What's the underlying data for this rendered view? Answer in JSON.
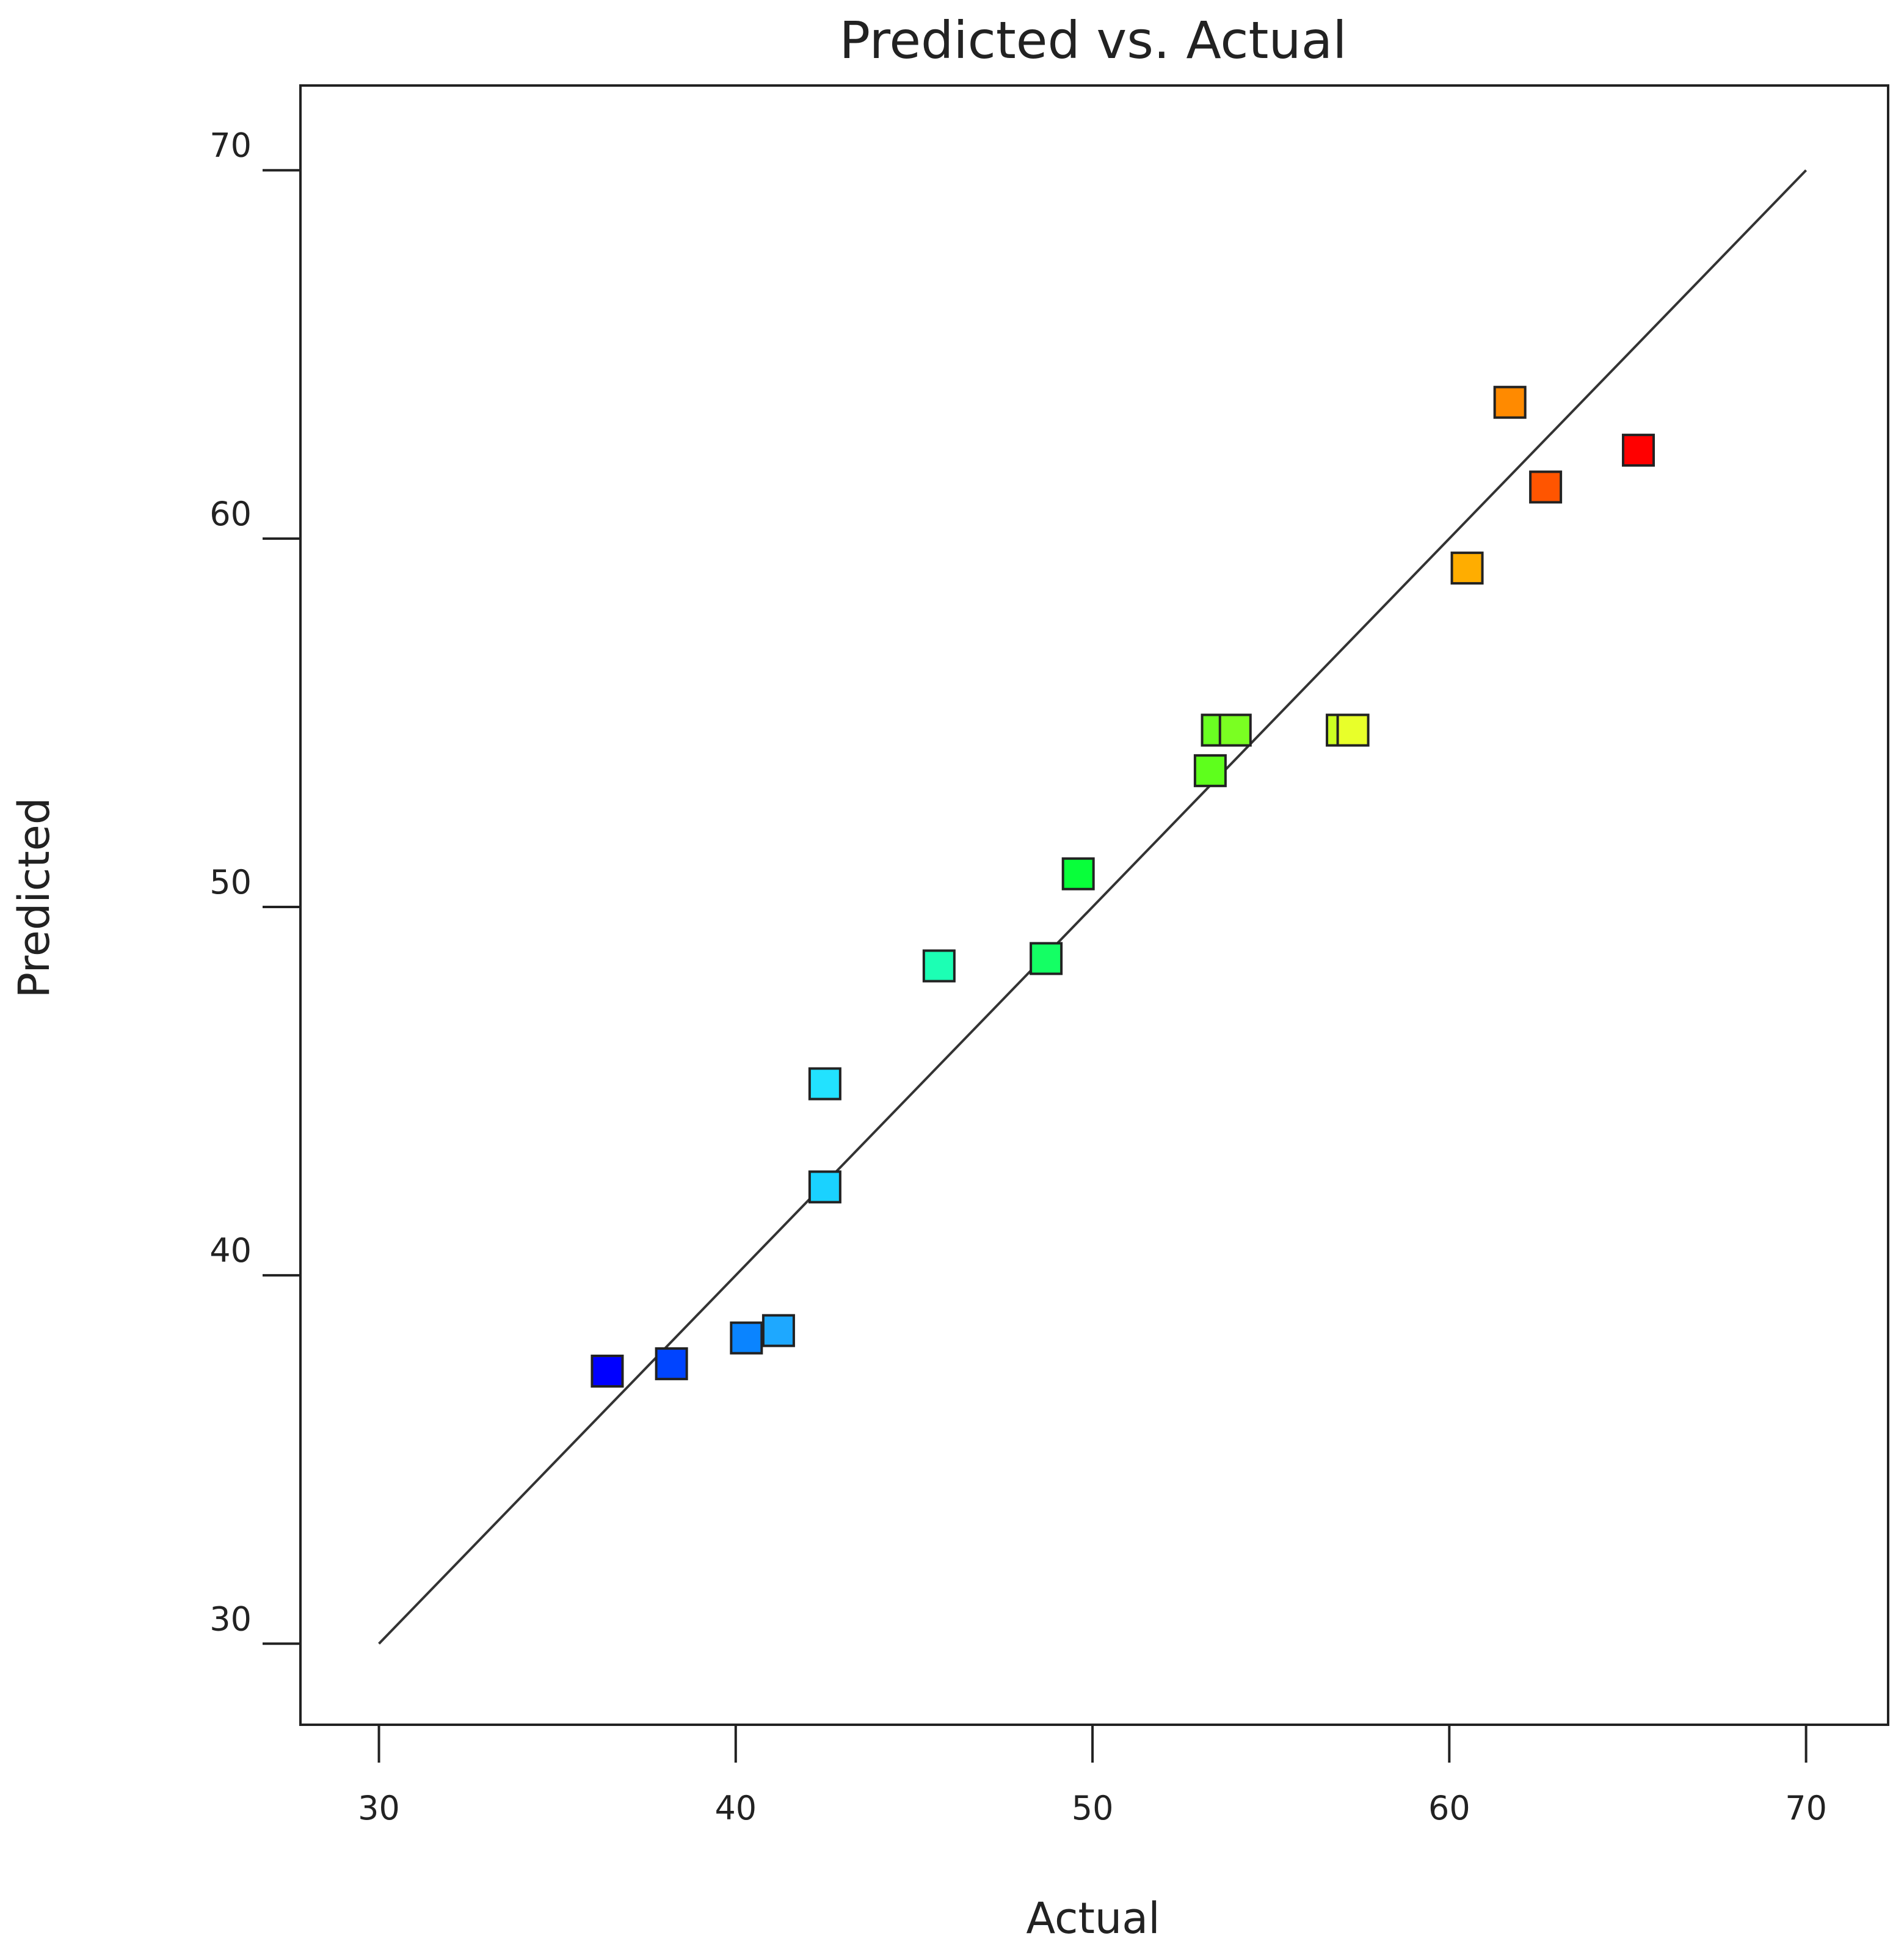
{
  "chart_data": {
    "type": "scatter",
    "title": "Predicted vs. Actual",
    "xlabel": "Actual",
    "ylabel": "Predicted",
    "xlim": [
      27.8,
      72.3
    ],
    "ylim": [
      27.8,
      72.3
    ],
    "xticks": [
      "30",
      "40",
      "50",
      "60",
      "70"
    ],
    "yticks": [
      "30",
      "40",
      "50",
      "60",
      "70"
    ],
    "grid": false,
    "legend": "none",
    "marker": "square",
    "reference_line": {
      "x": [
        30,
        70
      ],
      "y": [
        30,
        70
      ]
    },
    "points": [
      {
        "x": 36.4,
        "y": 37.4,
        "color": "#0000ff"
      },
      {
        "x": 38.2,
        "y": 37.6,
        "color": "#0044ff"
      },
      {
        "x": 40.3,
        "y": 38.3,
        "color": "#0a84ff"
      },
      {
        "x": 41.2,
        "y": 38.5,
        "color": "#1ea8ff"
      },
      {
        "x": 42.5,
        "y": 42.4,
        "color": "#1ad2ff"
      },
      {
        "x": 42.5,
        "y": 45.2,
        "color": "#22e2ff"
      },
      {
        "x": 45.7,
        "y": 48.4,
        "color": "#1cffb4"
      },
      {
        "x": 48.7,
        "y": 48.6,
        "color": "#14ff64"
      },
      {
        "x": 49.6,
        "y": 50.9,
        "color": "#08ff3a"
      },
      {
        "x": 53.3,
        "y": 53.7,
        "color": "#5eff1c"
      },
      {
        "x": 53.5,
        "y": 54.8,
        "color": "#6aff22"
      },
      {
        "x": 54.0,
        "y": 54.8,
        "color": "#7aff22"
      },
      {
        "x": 57.0,
        "y": 54.8,
        "color": "#ccff22"
      },
      {
        "x": 57.3,
        "y": 54.8,
        "color": "#e8ff2a"
      },
      {
        "x": 60.5,
        "y": 59.2,
        "color": "#ffad00"
      },
      {
        "x": 61.7,
        "y": 63.7,
        "color": "#ff8a00"
      },
      {
        "x": 62.7,
        "y": 61.4,
        "color": "#ff5500"
      },
      {
        "x": 65.3,
        "y": 62.4,
        "color": "#ff0000"
      }
    ]
  }
}
